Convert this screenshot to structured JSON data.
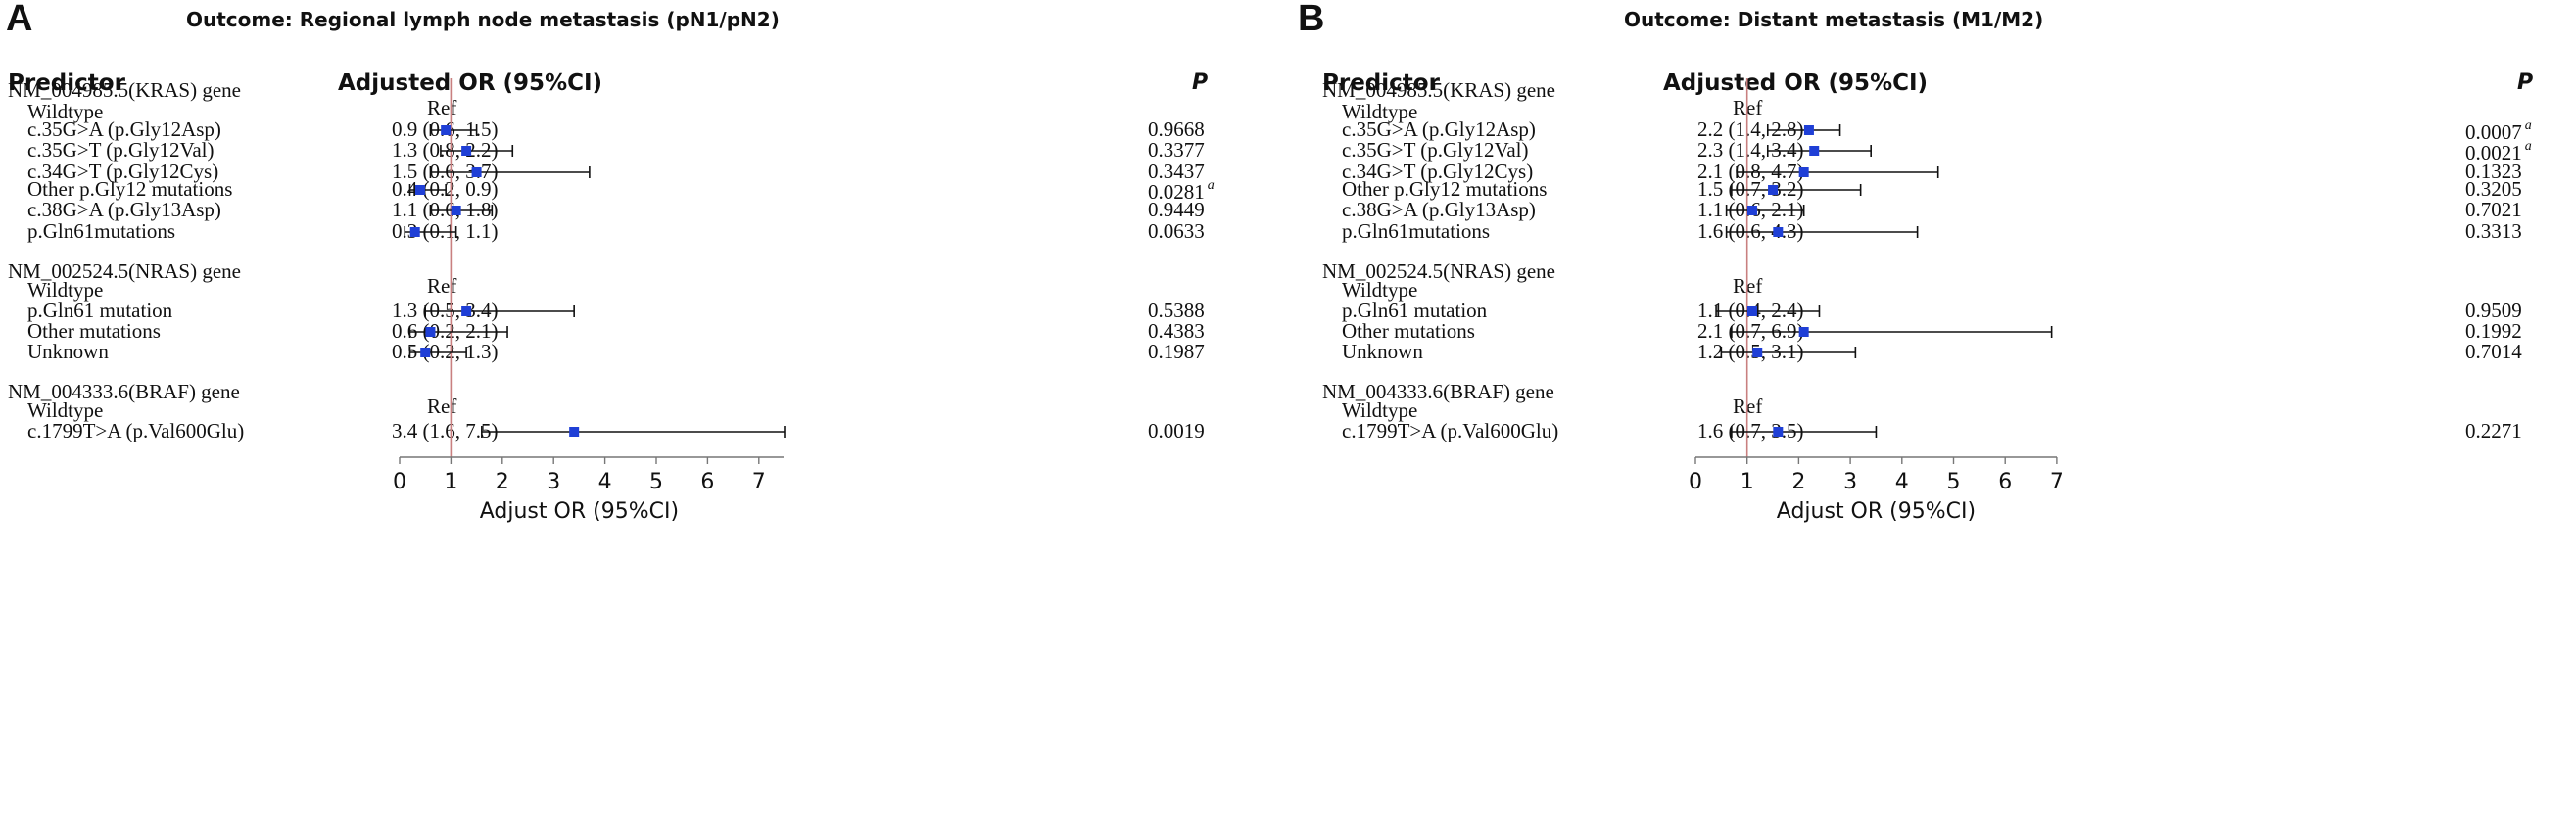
{
  "chart_data": [
    {
      "type": "forest",
      "panel_label": "A",
      "title": "Outcome: Regional lymph node metastasis (pN1/pN2)",
      "headers": {
        "predictor": "Predictor",
        "or": "Adjusted OR (95%CI)",
        "p": "P"
      },
      "xlabel": "Adjust OR (95%CI)",
      "xlim": [
        0,
        7.5
      ],
      "xticks": [
        "0",
        "1",
        "2",
        "3",
        "4",
        "5",
        "6",
        "7"
      ],
      "reference_line": 1,
      "rows": [
        {
          "kind": "group",
          "label": "NM_004985.5(KRAS) gene"
        },
        {
          "kind": "item",
          "label": "Wildtype",
          "or_text": "Ref"
        },
        {
          "kind": "item",
          "label": "c.35G>A (p.Gly12Asp)",
          "or_text": "0.9 (0.6, 1.5)",
          "est": 0.9,
          "lo": 0.6,
          "hi": 1.5,
          "p": "0.9668",
          "sig": ""
        },
        {
          "kind": "item",
          "label": "c.35G>T (p.Gly12Val)",
          "or_text": "1.3 (0.8, 2.2)",
          "est": 1.3,
          "lo": 0.8,
          "hi": 2.2,
          "p": "0.3377",
          "sig": ""
        },
        {
          "kind": "item",
          "label": "c.34G>T (p.Gly12Cys)",
          "or_text": "1.5 (0.6, 3.7)",
          "est": 1.5,
          "lo": 0.6,
          "hi": 3.7,
          "p": "0.3437",
          "sig": ""
        },
        {
          "kind": "item",
          "label": "Other p.Gly12 mutations",
          "or_text": "0.4 (0.2, 0.9)",
          "est": 0.4,
          "lo": 0.2,
          "hi": 0.9,
          "p": "0.0281",
          "sig": "a"
        },
        {
          "kind": "item",
          "label": "c.38G>A (p.Gly13Asp)",
          "or_text": "1.1 (0.6, 1.8)",
          "est": 1.1,
          "lo": 0.6,
          "hi": 1.8,
          "p": "0.9449",
          "sig": ""
        },
        {
          "kind": "item",
          "label": "p.Gln61mutations",
          "or_text": "0.3 (0.1, 1.1)",
          "est": 0.3,
          "lo": 0.1,
          "hi": 1.1,
          "p": "0.0633",
          "sig": ""
        },
        {
          "kind": "group",
          "label": "NM_002524.5(NRAS) gene"
        },
        {
          "kind": "item",
          "label": "Wildtype",
          "or_text": "Ref"
        },
        {
          "kind": "item",
          "label": "p.Gln61 mutation",
          "or_text": "1.3 (0.5, 3.4)",
          "est": 1.3,
          "lo": 0.5,
          "hi": 3.4,
          "p": "0.5388",
          "sig": ""
        },
        {
          "kind": "item",
          "label": "Other mutations",
          "or_text": "0.6 (0.2, 2.1)",
          "est": 0.6,
          "lo": 0.2,
          "hi": 2.1,
          "p": "0.4383",
          "sig": ""
        },
        {
          "kind": "item",
          "label": "Unknown",
          "or_text": "0.5 (0.2, 1.3)",
          "est": 0.5,
          "lo": 0.2,
          "hi": 1.3,
          "p": "0.1987",
          "sig": ""
        },
        {
          "kind": "group",
          "label": "NM_004333.6(BRAF) gene"
        },
        {
          "kind": "item",
          "label": "Wildtype",
          "or_text": "Ref"
        },
        {
          "kind": "item",
          "label": "c.1799T>A (p.Val600Glu)",
          "or_text": "3.4 (1.6, 7.5)",
          "est": 3.4,
          "lo": 1.6,
          "hi": 7.5,
          "p": "0.0019",
          "sig": ""
        }
      ]
    },
    {
      "type": "forest",
      "panel_label": "B",
      "title": "Outcome: Distant metastasis (M1/M2)",
      "headers": {
        "predictor": "Predictor",
        "or": "Adjusted OR (95%CI)",
        "p": "P"
      },
      "xlabel": "Adjust OR (95%CI)",
      "xlim": [
        0,
        7
      ],
      "xticks": [
        "0",
        "1",
        "2",
        "3",
        "4",
        "5",
        "6",
        "7"
      ],
      "reference_line": 1,
      "rows": [
        {
          "kind": "group",
          "label": "NM_004985.5(KRAS) gene"
        },
        {
          "kind": "item",
          "label": "Wildtype",
          "or_text": "Ref"
        },
        {
          "kind": "item",
          "label": "c.35G>A (p.Gly12Asp)",
          "or_text": "2.2 (1.4, 2.8)",
          "est": 2.2,
          "lo": 1.4,
          "hi": 2.8,
          "p": "0.0007",
          "sig": "a"
        },
        {
          "kind": "item",
          "label": "c.35G>T (p.Gly12Val)",
          "or_text": "2.3 (1.4, 3.4)",
          "est": 2.3,
          "lo": 1.4,
          "hi": 3.4,
          "p": "0.0021",
          "sig": "a"
        },
        {
          "kind": "item",
          "label": "c.34G>T (p.Gly12Cys)",
          "or_text": "2.1 (0.8, 4.7)",
          "est": 2.1,
          "lo": 0.8,
          "hi": 4.7,
          "p": "0.1323",
          "sig": ""
        },
        {
          "kind": "item",
          "label": "Other p.Gly12 mutations",
          "or_text": "1.5 (0.7, 3.2)",
          "est": 1.5,
          "lo": 0.7,
          "hi": 3.2,
          "p": "0.3205",
          "sig": ""
        },
        {
          "kind": "item",
          "label": "c.38G>A (p.Gly13Asp)",
          "or_text": "1.1 (0.6, 2.1)",
          "est": 1.1,
          "lo": 0.6,
          "hi": 2.1,
          "p": "0.7021",
          "sig": ""
        },
        {
          "kind": "item",
          "label": "p.Gln61mutations",
          "or_text": "1.6 (0.6, 4.3)",
          "est": 1.6,
          "lo": 0.6,
          "hi": 4.3,
          "p": "0.3313",
          "sig": ""
        },
        {
          "kind": "group",
          "label": "NM_002524.5(NRAS) gene"
        },
        {
          "kind": "item",
          "label": "Wildtype",
          "or_text": "Ref"
        },
        {
          "kind": "item",
          "label": "p.Gln61 mutation",
          "or_text": "1.1 (0.4, 2.4)",
          "est": 1.1,
          "lo": 0.4,
          "hi": 2.4,
          "p": "0.9509",
          "sig": ""
        },
        {
          "kind": "item",
          "label": "Other mutations",
          "or_text": "2.1 (0.7, 6.9)",
          "est": 2.1,
          "lo": 0.7,
          "hi": 6.9,
          "p": "0.1992",
          "sig": ""
        },
        {
          "kind": "item",
          "label": "Unknown",
          "or_text": "1.2 (0.5, 3.1)",
          "est": 1.2,
          "lo": 0.5,
          "hi": 3.1,
          "p": "0.7014",
          "sig": ""
        },
        {
          "kind": "group",
          "label": "NM_004333.6(BRAF) gene"
        },
        {
          "kind": "item",
          "label": "Wildtype",
          "or_text": "Ref"
        },
        {
          "kind": "item",
          "label": "c.1799T>A (p.Val600Glu)",
          "or_text": "1.6 (0.7, 3.5)",
          "est": 1.6,
          "lo": 0.7,
          "hi": 3.5,
          "p": "0.2271",
          "sig": ""
        }
      ]
    }
  ],
  "colors": {
    "marker": "#1f3fd6",
    "reference_line": "#c98080",
    "ci_line": "#111111",
    "axis": "#777777"
  }
}
